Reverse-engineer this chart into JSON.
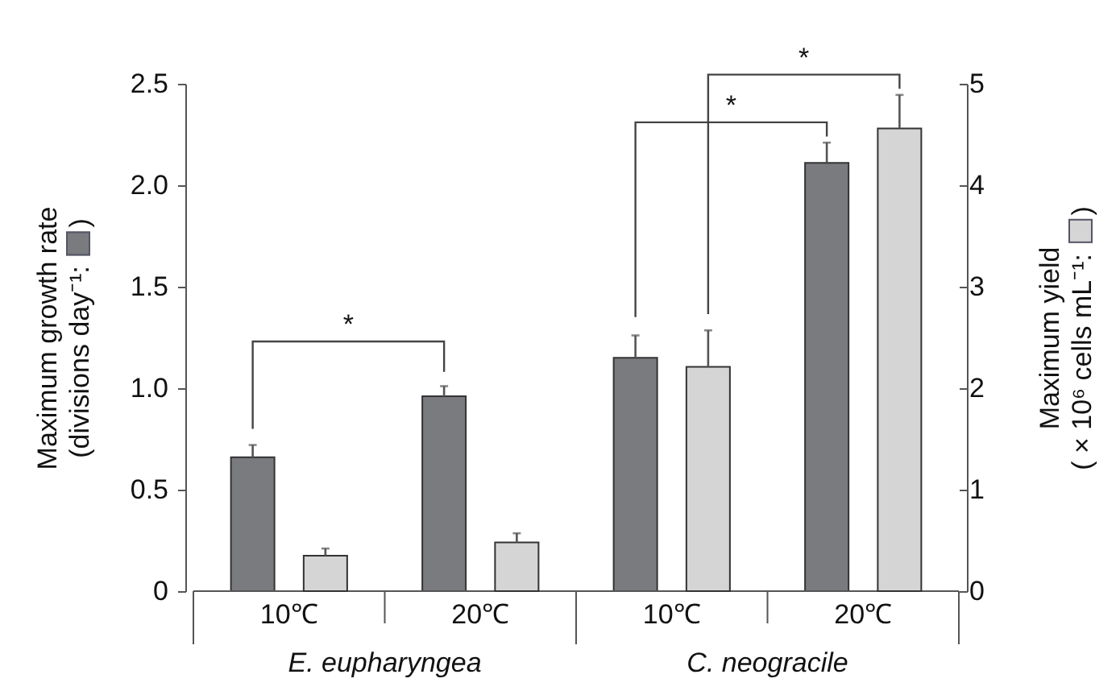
{
  "chart_data": {
    "type": "bar",
    "categories": [
      "10℃",
      "20℃",
      "10℃",
      "20℃"
    ],
    "series": [
      {
        "color": "#7a7b7f",
        "values": [
          0.66,
          0.96,
          1.15,
          2.11
        ],
        "errors": [
          [
            0.66,
            0.72
          ],
          [
            0.96,
            1.01
          ],
          [
            1.15,
            1.26
          ],
          [
            2.11,
            2.21
          ]
        ]
      },
      {
        "color": "#d4d5d4",
        "axis": "y2",
        "values": [
          0.35,
          0.48,
          2.21,
          4.56
        ],
        "errors": [
          [
            0.35,
            0.42
          ],
          [
            0.48,
            0.57
          ],
          [
            2.21,
            2.57
          ],
          [
            4.56,
            4.89
          ]
        ]
      }
    ],
    "ylabel": "Maximum growth rate (divisions day⁻¹: )",
    "y2label": "Maximum yield ( × 10⁶ cells mL⁻¹: )",
    "ylim": [
      0,
      2.5
    ],
    "yticks": [
      0,
      0.5,
      {
        "value": 1,
        "label": "1.0"
      },
      1.5,
      {
        "value": 2,
        "label": "2.0"
      },
      2.5
    ],
    "y2lim": [
      0,
      5
    ],
    "y2ticks": [
      0,
      1,
      2,
      3,
      4,
      5
    ],
    "annotations": [
      "E. eupharyngea",
      "C. neogracile",
      "*",
      "*",
      "*"
    ]
  }
}
